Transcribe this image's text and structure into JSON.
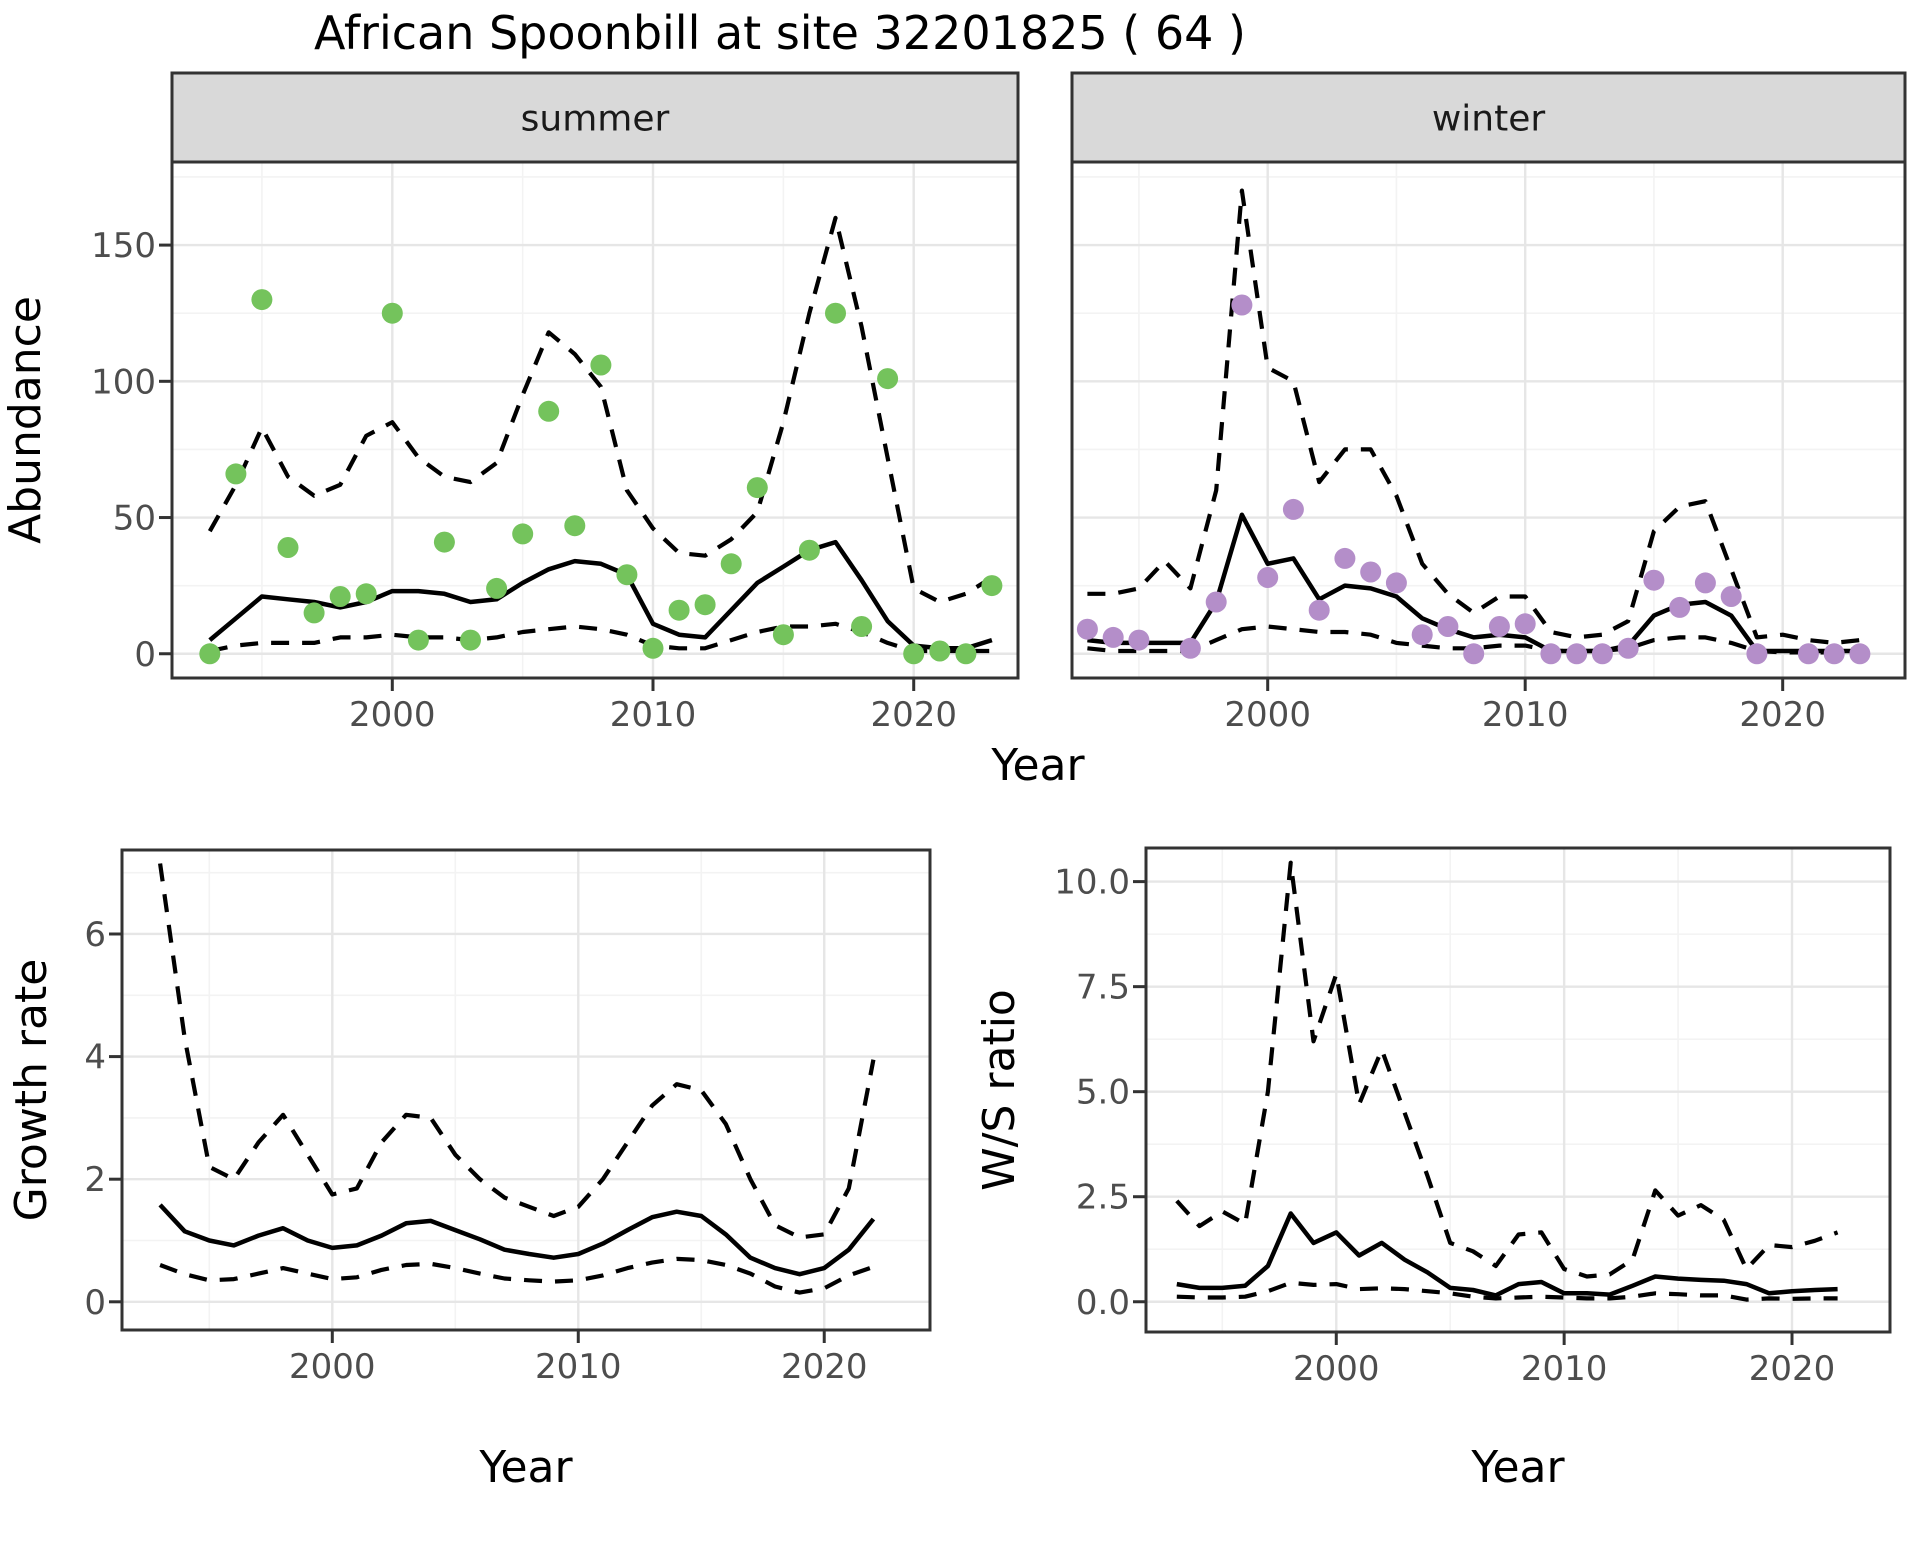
{
  "title": "African Spoonbill at site 32201825 ( 64 )",
  "colors": {
    "summer_point": "#74c35c",
    "winter_point": "#b48ec9",
    "line": "#000000",
    "panel_border": "#333333",
    "grid_major": "#e6e6e6",
    "grid_minor": "#f3f3f3",
    "strip_bg": "#d9d9d9",
    "strip_text": "#1a1a1a",
    "tick_text": "#4d4d4d",
    "axis_title": "#000000"
  },
  "axes": {
    "abundance": {
      "ylabel": "Abundance",
      "xlabel": "Year"
    },
    "growth": {
      "ylabel": "Growth rate",
      "xlabel": "Year"
    },
    "ws": {
      "ylabel": "W/S ratio",
      "xlabel": "Year"
    }
  },
  "chart_data": [
    {
      "id": "summer",
      "type": "line",
      "facet_label": "summer",
      "x": [
        1993,
        1994,
        1995,
        1996,
        1997,
        1998,
        1999,
        2000,
        2001,
        2002,
        2003,
        2004,
        2005,
        2006,
        2007,
        2008,
        2009,
        2010,
        2011,
        2012,
        2013,
        2014,
        2015,
        2016,
        2017,
        2018,
        2019,
        2020,
        2021,
        2022,
        2023
      ],
      "series": [
        {
          "name": "observed-count",
          "type": "scatter",
          "color_key": "summer_point",
          "values": [
            0,
            66,
            130,
            39,
            15,
            21,
            22,
            125,
            5,
            41,
            5,
            24,
            44,
            89,
            47,
            106,
            29,
            2,
            16,
            18,
            33,
            61,
            7,
            38,
            125,
            10,
            101,
            0,
            1,
            0,
            25
          ]
        },
        {
          "name": "model-median",
          "type": "line",
          "dash": "solid",
          "values": [
            5,
            13,
            21,
            20,
            19,
            17,
            19,
            23,
            23,
            22,
            19,
            20,
            26,
            31,
            34,
            33,
            29,
            11,
            7,
            6,
            16,
            26,
            32,
            38,
            41,
            27,
            12,
            3,
            2,
            2,
            5
          ]
        },
        {
          "name": "upper-ci",
          "type": "line",
          "dash": "dashed",
          "values": [
            45,
            62,
            83,
            65,
            58,
            62,
            80,
            85,
            72,
            65,
            63,
            70,
            95,
            118,
            110,
            98,
            60,
            46,
            37,
            36,
            42,
            52,
            85,
            125,
            160,
            120,
            72,
            24,
            19,
            22,
            28
          ]
        },
        {
          "name": "lower-ci",
          "type": "line",
          "dash": "dashed",
          "values": [
            1,
            3,
            4,
            4,
            4,
            6,
            6,
            7,
            6,
            6,
            5,
            6,
            8,
            9,
            10,
            9,
            7,
            3,
            2,
            2,
            5,
            8,
            10,
            10,
            11,
            8,
            4,
            1,
            1,
            1,
            1
          ]
        }
      ],
      "xlim": [
        1991.55,
        2024.0
      ],
      "ylim": [
        -8.9,
        180.5
      ],
      "x_ticks": {
        "values": [
          2000,
          2010,
          2020
        ],
        "labels": [
          "2000",
          "2010",
          "2020"
        ]
      },
      "y_ticks": {
        "values": [
          0,
          50,
          100,
          150
        ],
        "labels": [
          "0",
          "50",
          "100",
          "150"
        ]
      },
      "x_minor": [
        1995,
        2005,
        2015
      ],
      "y_minor": [
        25,
        75,
        125,
        175
      ],
      "grid": true,
      "legend": "none",
      "show_y_tick_labels": true
    },
    {
      "id": "winter",
      "type": "line",
      "facet_label": "winter",
      "x": [
        1993,
        1994,
        1995,
        1996,
        1997,
        1998,
        1999,
        2000,
        2001,
        2002,
        2003,
        2004,
        2005,
        2006,
        2007,
        2008,
        2009,
        2010,
        2011,
        2012,
        2013,
        2014,
        2015,
        2016,
        2017,
        2018,
        2019,
        2020,
        2021,
        2022,
        2023
      ],
      "series": [
        {
          "name": "observed-count",
          "type": "scatter",
          "color_key": "winter_point",
          "values": [
            9,
            6,
            5,
            null,
            2,
            19,
            128,
            28,
            53,
            16,
            35,
            30,
            26,
            7,
            10,
            0,
            10,
            11,
            0,
            0,
            0,
            2,
            27,
            17,
            26,
            21,
            0,
            null,
            0,
            0,
            0
          ]
        },
        {
          "name": "model-median",
          "type": "line",
          "dash": "solid",
          "values": [
            5,
            4,
            4,
            4,
            4,
            19,
            51,
            33,
            35,
            20,
            25,
            24,
            21,
            13,
            9,
            6,
            7,
            6,
            1,
            1,
            1,
            3,
            14,
            18,
            19,
            14,
            1,
            1,
            1,
            1,
            1
          ]
        },
        {
          "name": "upper-ci",
          "type": "line",
          "dash": "dashed",
          "values": [
            22,
            22,
            24,
            34,
            24,
            60,
            170,
            105,
            100,
            63,
            75,
            75,
            58,
            33,
            22,
            15,
            21,
            21,
            8,
            6,
            7,
            12,
            45,
            54,
            56,
            31,
            6,
            7,
            5,
            4,
            5
          ]
        },
        {
          "name": "lower-ci",
          "type": "line",
          "dash": "dashed",
          "values": [
            2,
            1,
            1,
            1,
            1,
            5,
            9,
            10,
            9,
            8,
            8,
            7,
            4,
            3,
            2,
            2,
            3,
            3,
            1,
            1,
            1,
            2,
            5,
            6,
            6,
            4,
            1,
            0.5,
            0.5,
            0.5,
            2
          ]
        }
      ],
      "xlim": [
        1992.4,
        2024.75
      ],
      "ylim": [
        -8.9,
        180.5
      ],
      "x_ticks": {
        "values": [
          2000,
          2010,
          2020
        ],
        "labels": [
          "2000",
          "2010",
          "2020"
        ]
      },
      "y_ticks": {
        "values": [
          0,
          50,
          100,
          150
        ],
        "labels": [
          "0",
          "50",
          "100",
          "150"
        ]
      },
      "x_minor": [
        1995,
        2005,
        2015
      ],
      "y_minor": [
        25,
        75,
        125,
        175
      ],
      "grid": true,
      "legend": "none",
      "show_y_tick_labels": false
    },
    {
      "id": "growth",
      "type": "line",
      "facet_label": null,
      "x": [
        1993,
        1994,
        1995,
        1996,
        1997,
        1998,
        1999,
        2000,
        2001,
        2002,
        2003,
        2004,
        2005,
        2006,
        2007,
        2008,
        2009,
        2010,
        2011,
        2012,
        2013,
        2014,
        2015,
        2016,
        2017,
        2018,
        2019,
        2020,
        2021,
        2022
      ],
      "series": [
        {
          "name": "model-median",
          "type": "line",
          "dash": "solid",
          "values": [
            1.58,
            1.15,
            1.0,
            0.92,
            1.08,
            1.2,
            1.0,
            0.88,
            0.92,
            1.08,
            1.28,
            1.32,
            1.17,
            1.02,
            0.85,
            0.78,
            0.72,
            0.78,
            0.95,
            1.17,
            1.38,
            1.47,
            1.4,
            1.1,
            0.72,
            0.55,
            0.45,
            0.55,
            0.85,
            1.35
          ]
        },
        {
          "name": "upper-ci",
          "type": "line",
          "dash": "dashed",
          "values": [
            7.15,
            4.3,
            2.2,
            2.0,
            2.6,
            3.05,
            2.4,
            1.75,
            1.85,
            2.6,
            3.05,
            3.0,
            2.4,
            2.0,
            1.7,
            1.55,
            1.4,
            1.55,
            2.0,
            2.6,
            3.2,
            3.55,
            3.45,
            2.9,
            2.0,
            1.25,
            1.05,
            1.1,
            1.85,
            3.95
          ]
        },
        {
          "name": "lower-ci",
          "type": "line",
          "dash": "dashed",
          "values": [
            0.6,
            0.45,
            0.35,
            0.37,
            0.46,
            0.55,
            0.46,
            0.37,
            0.4,
            0.52,
            0.6,
            0.62,
            0.55,
            0.46,
            0.38,
            0.35,
            0.33,
            0.35,
            0.43,
            0.55,
            0.64,
            0.7,
            0.68,
            0.6,
            0.46,
            0.25,
            0.15,
            0.22,
            0.43,
            0.57
          ]
        }
      ],
      "xlim": [
        1991.45,
        2024.3
      ],
      "ylim": [
        -0.46,
        7.37
      ],
      "x_ticks": {
        "values": [
          2000,
          2010,
          2020
        ],
        "labels": [
          "2000",
          "2010",
          "2020"
        ]
      },
      "y_ticks": {
        "values": [
          0,
          2,
          4,
          6
        ],
        "labels": [
          "0",
          "2",
          "4",
          "6"
        ]
      },
      "x_minor": [
        1995,
        2005,
        2015
      ],
      "y_minor": [
        1,
        3,
        5,
        7
      ],
      "grid": true,
      "legend": "none",
      "show_y_tick_labels": true
    },
    {
      "id": "ws",
      "type": "line",
      "facet_label": null,
      "x": [
        1993,
        1994,
        1995,
        1996,
        1997,
        1998,
        1999,
        2000,
        2001,
        2002,
        2003,
        2004,
        2005,
        2006,
        2007,
        2008,
        2009,
        2010,
        2011,
        2012,
        2013,
        2014,
        2015,
        2016,
        2017,
        2018,
        2019,
        2020,
        2021,
        2022
      ],
      "series": [
        {
          "name": "model-median",
          "type": "line",
          "dash": "solid",
          "values": [
            0.42,
            0.33,
            0.33,
            0.38,
            0.85,
            2.1,
            1.4,
            1.65,
            1.1,
            1.4,
            1.0,
            0.7,
            0.33,
            0.28,
            0.15,
            0.42,
            0.47,
            0.2,
            0.2,
            0.17,
            0.38,
            0.6,
            0.55,
            0.52,
            0.5,
            0.42,
            0.2,
            0.25,
            0.28,
            0.3
          ]
        },
        {
          "name": "upper-ci",
          "type": "line",
          "dash": "dashed",
          "values": [
            2.4,
            1.8,
            2.15,
            1.85,
            5.0,
            10.45,
            6.2,
            7.8,
            4.7,
            6.0,
            4.5,
            3.0,
            1.4,
            1.2,
            0.85,
            1.6,
            1.65,
            0.78,
            0.6,
            0.65,
            1.0,
            2.65,
            2.05,
            2.3,
            1.95,
            0.78,
            1.35,
            1.3,
            1.45,
            1.65
          ]
        },
        {
          "name": "lower-ci",
          "type": "line",
          "dash": "dashed",
          "values": [
            0.12,
            0.1,
            0.1,
            0.12,
            0.25,
            0.45,
            0.4,
            0.42,
            0.3,
            0.32,
            0.3,
            0.25,
            0.2,
            0.12,
            0.08,
            0.1,
            0.12,
            0.1,
            0.08,
            0.08,
            0.12,
            0.2,
            0.18,
            0.15,
            0.15,
            0.05,
            0.08,
            0.07,
            0.08,
            0.08
          ]
        }
      ],
      "xlim": [
        1991.65,
        2024.3
      ],
      "ylim": [
        -0.72,
        10.8
      ],
      "x_ticks": {
        "values": [
          2000,
          2010,
          2020
        ],
        "labels": [
          "2000",
          "2010",
          "2020"
        ]
      },
      "y_ticks": {
        "values": [
          0,
          2.5,
          5,
          7.5,
          10
        ],
        "labels": [
          "0.0",
          "2.5",
          "5.0",
          "7.5",
          "10.0"
        ]
      },
      "x_minor": [
        1995,
        2005,
        2015
      ],
      "y_minor": [
        1.25,
        3.75,
        6.25,
        8.75
      ],
      "grid": true,
      "legend": "none",
      "show_y_tick_labels": true
    }
  ]
}
